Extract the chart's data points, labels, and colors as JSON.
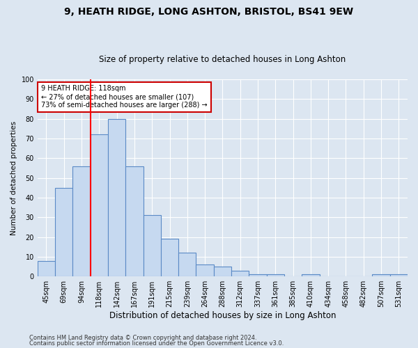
{
  "title1": "9, HEATH RIDGE, LONG ASHTON, BRISTOL, BS41 9EW",
  "title2": "Size of property relative to detached houses in Long Ashton",
  "xlabel": "Distribution of detached houses by size in Long Ashton",
  "ylabel": "Number of detached properties",
  "categories": [
    "45sqm",
    "69sqm",
    "94sqm",
    "118sqm",
    "142sqm",
    "167sqm",
    "191sqm",
    "215sqm",
    "239sqm",
    "264sqm",
    "288sqm",
    "312sqm",
    "337sqm",
    "361sqm",
    "385sqm",
    "410sqm",
    "434sqm",
    "458sqm",
    "482sqm",
    "507sqm",
    "531sqm"
  ],
  "values": [
    8,
    45,
    56,
    72,
    80,
    56,
    31,
    19,
    12,
    6,
    5,
    3,
    1,
    1,
    0,
    1,
    0,
    0,
    0,
    1,
    1
  ],
  "bar_color": "#c6d9f0",
  "bar_edge_color": "#5a8ac6",
  "red_line_index": 3,
  "annotation_text": "9 HEATH RIDGE: 118sqm\n← 27% of detached houses are smaller (107)\n73% of semi-detached houses are larger (288) →",
  "annotation_box_color": "#ffffff",
  "annotation_edge_color": "#cc0000",
  "background_color": "#dce6f1",
  "plot_bg_color": "#dce6f1",
  "grid_color": "#ffffff",
  "footer1": "Contains HM Land Registry data © Crown copyright and database right 2024.",
  "footer2": "Contains public sector information licensed under the Open Government Licence v3.0.",
  "ylim": [
    0,
    100
  ],
  "title1_fontsize": 10,
  "title2_fontsize": 8.5,
  "ylabel_fontsize": 7.5,
  "xlabel_fontsize": 8.5,
  "tick_fontsize": 7,
  "annotation_fontsize": 7,
  "footer_fontsize": 6
}
